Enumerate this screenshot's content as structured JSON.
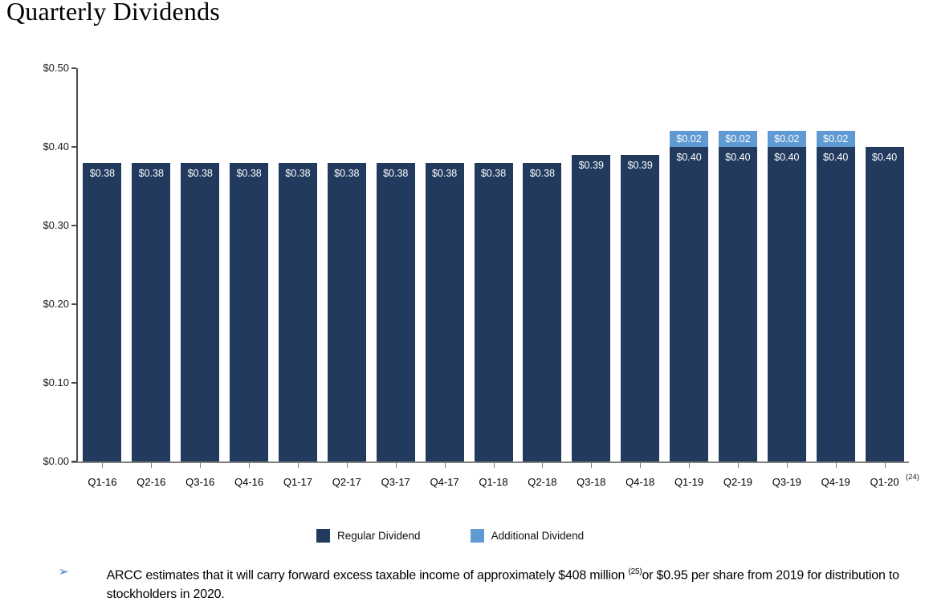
{
  "page_title": "Quarterly Dividends",
  "chart_data": {
    "type": "bar",
    "stacked": true,
    "title": "Quarterly Dividends",
    "grid": false,
    "legend_position": "bottom",
    "ylim": [
      0,
      0.5
    ],
    "y_ticks": [
      {
        "value": 0.0,
        "label": "$0.00"
      },
      {
        "value": 0.1,
        "label": "$0.10"
      },
      {
        "value": 0.2,
        "label": "$0.20"
      },
      {
        "value": 0.3,
        "label": "$0.30"
      },
      {
        "value": 0.4,
        "label": "$0.40"
      },
      {
        "value": 0.5,
        "label": "$0.50"
      }
    ],
    "categories": [
      "Q1-16",
      "Q2-16",
      "Q3-16",
      "Q4-16",
      "Q1-17",
      "Q2-17",
      "Q3-17",
      "Q4-17",
      "Q1-18",
      "Q2-18",
      "Q3-18",
      "Q4-18",
      "Q1-19",
      "Q2-19",
      "Q3-19",
      "Q4-19",
      "Q1-20"
    ],
    "category_note": "(24)",
    "series": [
      {
        "name": "Regular Dividend",
        "color": "#213a5e",
        "values": [
          0.38,
          0.38,
          0.38,
          0.38,
          0.38,
          0.38,
          0.38,
          0.38,
          0.38,
          0.38,
          0.39,
          0.39,
          0.4,
          0.4,
          0.4,
          0.4,
          0.4
        ],
        "labels": [
          "$0.38",
          "$0.38",
          "$0.38",
          "$0.38",
          "$0.38",
          "$0.38",
          "$0.38",
          "$0.38",
          "$0.38",
          "$0.38",
          "$0.39",
          "$0.39",
          "$0.40",
          "$0.40",
          "$0.40",
          "$0.40",
          "$0.40"
        ]
      },
      {
        "name": "Additional Dividend",
        "color": "#5f9ad3",
        "values": [
          0,
          0,
          0,
          0,
          0,
          0,
          0,
          0,
          0,
          0,
          0,
          0,
          0.02,
          0.02,
          0.02,
          0.02,
          0
        ],
        "labels": [
          null,
          null,
          null,
          null,
          null,
          null,
          null,
          null,
          null,
          null,
          null,
          null,
          "$0.02",
          "$0.02",
          "$0.02",
          "$0.02",
          null
        ]
      }
    ]
  },
  "legend": {
    "items": [
      {
        "label": "Regular Dividend",
        "color": "#213a5e"
      },
      {
        "label": "Additional Dividend",
        "color": "#5f9ad3"
      }
    ]
  },
  "footnote": {
    "bullet": "➢",
    "text_before_sup": "ARCC estimates that it will carry forward excess taxable income of approximately $408 million ",
    "sup": "(25)",
    "text_after_sup": "or $0.95 per share from 2019 for distribution to stockholders in 2020."
  }
}
